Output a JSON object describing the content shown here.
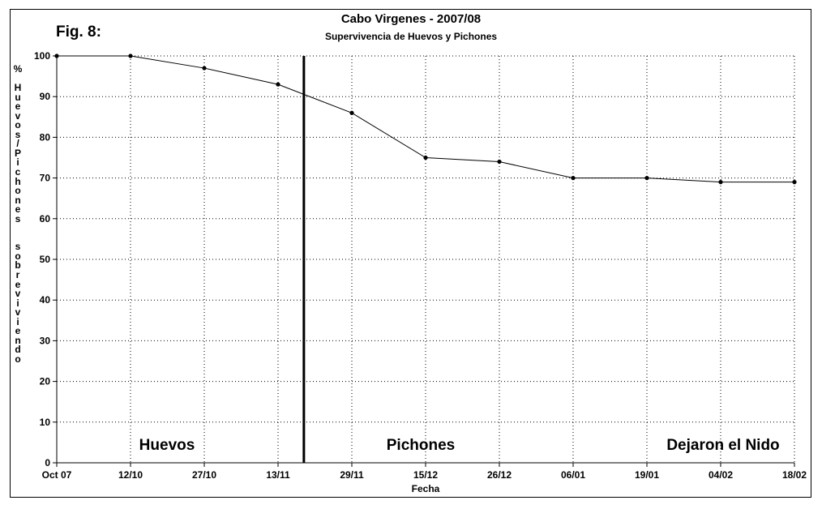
{
  "figure_label": "Fig. 8:",
  "chart_data": {
    "type": "line",
    "title": "Cabo Virgenes - 2007/08",
    "subtitle": "Supervivencia de Huevos y Pichones",
    "xlabel": "Fecha",
    "ylabel": "% Huevos/Pichones  sobreviviendo",
    "categories": [
      "Oct 07",
      "12/10",
      "27/10",
      "13/11",
      "29/11",
      "15/12",
      "26/12",
      "06/01",
      "19/01",
      "04/02",
      "18/02"
    ],
    "values": [
      100,
      100,
      97,
      93,
      86,
      75,
      74,
      70,
      70,
      69,
      69
    ],
    "ylim": [
      0,
      100
    ],
    "yticks": [
      0,
      10,
      20,
      30,
      40,
      50,
      60,
      70,
      80,
      90,
      100
    ],
    "grid": true,
    "line_color": "#000000",
    "divider_after_index": 3.35,
    "annotations": [
      "Huevos",
      "Pichones",
      "Dejaron el Nido"
    ]
  }
}
